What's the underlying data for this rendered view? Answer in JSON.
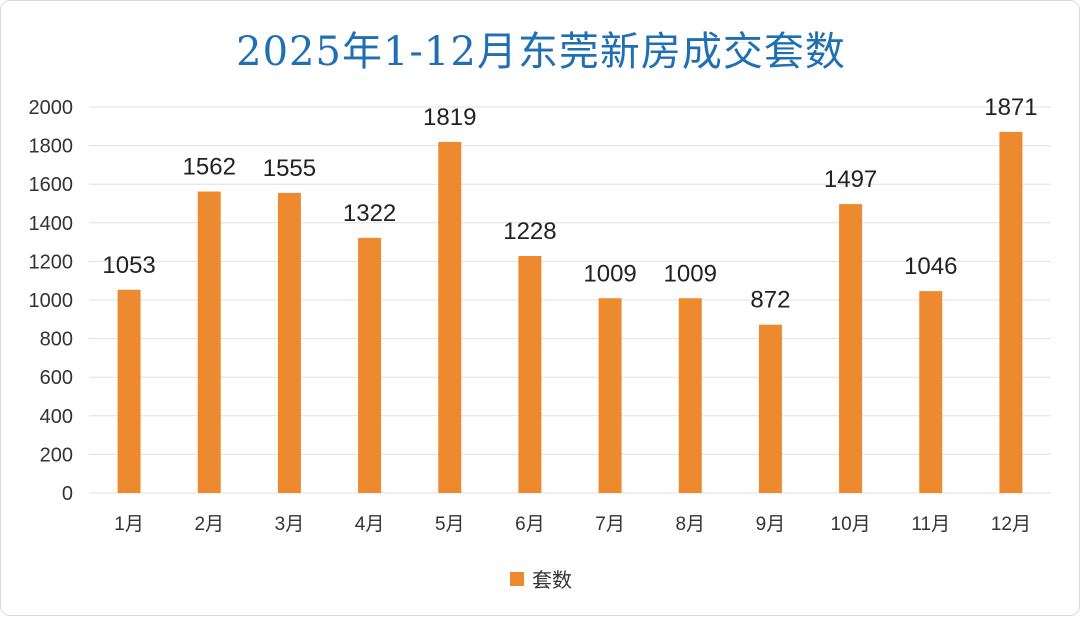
{
  "chart_data": {
    "type": "bar",
    "title": "2025年1-12月东莞新房成交套数",
    "categories": [
      "1月",
      "2月",
      "3月",
      "4月",
      "5月",
      "6月",
      "7月",
      "8月",
      "9月",
      "10月",
      "11月",
      "12月"
    ],
    "series": [
      {
        "name": "套数",
        "color": "#ed8a2f",
        "values": [
          1053,
          1562,
          1555,
          1322,
          1819,
          1228,
          1009,
          1009,
          872,
          1497,
          1046,
          1871
        ]
      }
    ],
    "ylim": [
      0,
      2000
    ],
    "yticks": [
      0,
      200,
      400,
      600,
      800,
      1000,
      1200,
      1400,
      1600,
      1800,
      2000
    ],
    "grid": true,
    "legend_position": "bottom",
    "data_labels": true
  },
  "colors": {
    "title": "#1f6fb2",
    "bar": "#ed8a2f",
    "grid": "#e0e0e0"
  }
}
